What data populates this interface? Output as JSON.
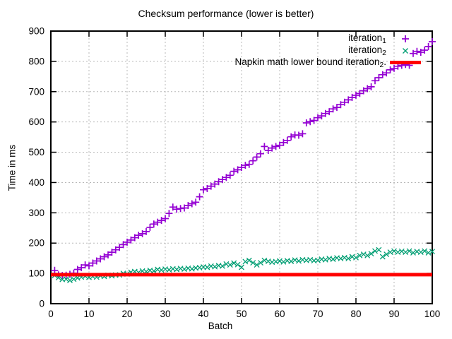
{
  "chart_data": {
    "type": "scatter",
    "title": "Checksum performance (lower is better)",
    "xlabel": "Batch",
    "ylabel": "Time in ms",
    "xlim": [
      0,
      100
    ],
    "ylim": [
      0,
      900
    ],
    "x_ticks": [
      0,
      10,
      20,
      30,
      40,
      50,
      60,
      70,
      80,
      90,
      100
    ],
    "y_ticks": [
      0,
      100,
      200,
      300,
      400,
      500,
      600,
      700,
      800,
      900
    ],
    "grid": true,
    "grid_color": "#b8b8b8",
    "axis_color": "#000000",
    "legend_position": "top-right-inside",
    "series": [
      {
        "name_base": "iteration",
        "name_sub": "1",
        "name_after": "",
        "marker": "plus",
        "color": "#9400d3",
        "x_start": 1,
        "x_step": 1,
        "y": [
          110,
          95,
          93,
          94,
          97,
          101,
          113,
          119,
          128,
          125,
          134,
          141,
          148,
          155,
          161,
          170,
          178,
          186,
          195,
          203,
          210,
          218,
          226,
          231,
          238,
          252,
          263,
          269,
          275,
          281,
          298,
          319,
          312,
          314,
          316,
          324,
          330,
          335,
          353,
          376,
          380,
          388,
          395,
          403,
          410,
          417,
          424,
          437,
          442,
          450,
          457,
          460,
          472,
          484,
          495,
          519,
          506,
          514,
          519,
          523,
          532,
          539,
          551,
          557,
          556,
          561,
          597,
          601,
          605,
          614,
          620,
          628,
          634,
          643,
          648,
          657,
          665,
          673,
          681,
          688,
          694,
          703,
          710,
          716,
          736,
          746,
          756,
          762,
          772,
          777,
          784,
          787,
          790,
          787,
          826,
          833,
          830,
          837,
          849,
          865
        ]
      },
      {
        "name_base": "iteration",
        "name_sub": "2",
        "name_after": "",
        "marker": "cross",
        "color": "#009e73",
        "x_start": 1,
        "x_step": 1,
        "y": [
          93,
          86,
          80,
          81,
          77,
          81,
          85,
          88,
          91,
          87,
          90,
          88,
          92,
          90,
          94,
          92,
          95,
          95,
          100,
          98,
          104,
          106,
          103,
          108,
          106,
          110,
          108,
          113,
          111,
          114,
          112,
          115,
          113,
          116,
          114,
          117,
          115,
          118,
          119,
          121,
          120,
          124,
          122,
          126,
          124,
          131,
          128,
          134,
          129,
          120,
          139,
          143,
          135,
          128,
          135,
          143,
          140,
          137,
          139,
          141,
          138,
          142,
          140,
          144,
          141,
          145,
          143,
          145,
          142,
          143,
          147,
          145,
          149,
          147,
          151,
          149,
          152,
          149,
          155,
          152,
          159,
          163,
          159,
          165,
          174,
          178,
          155,
          163,
          170,
          174,
          170,
          173,
          170,
          174,
          168,
          172,
          170,
          174,
          168,
          172
        ]
      },
      {
        "name_base": "Napkin math lower bound iteration",
        "name_sub": "2",
        "name_after": ".",
        "marker": "hline",
        "color": "#ff0000",
        "y_value": 96
      }
    ]
  }
}
